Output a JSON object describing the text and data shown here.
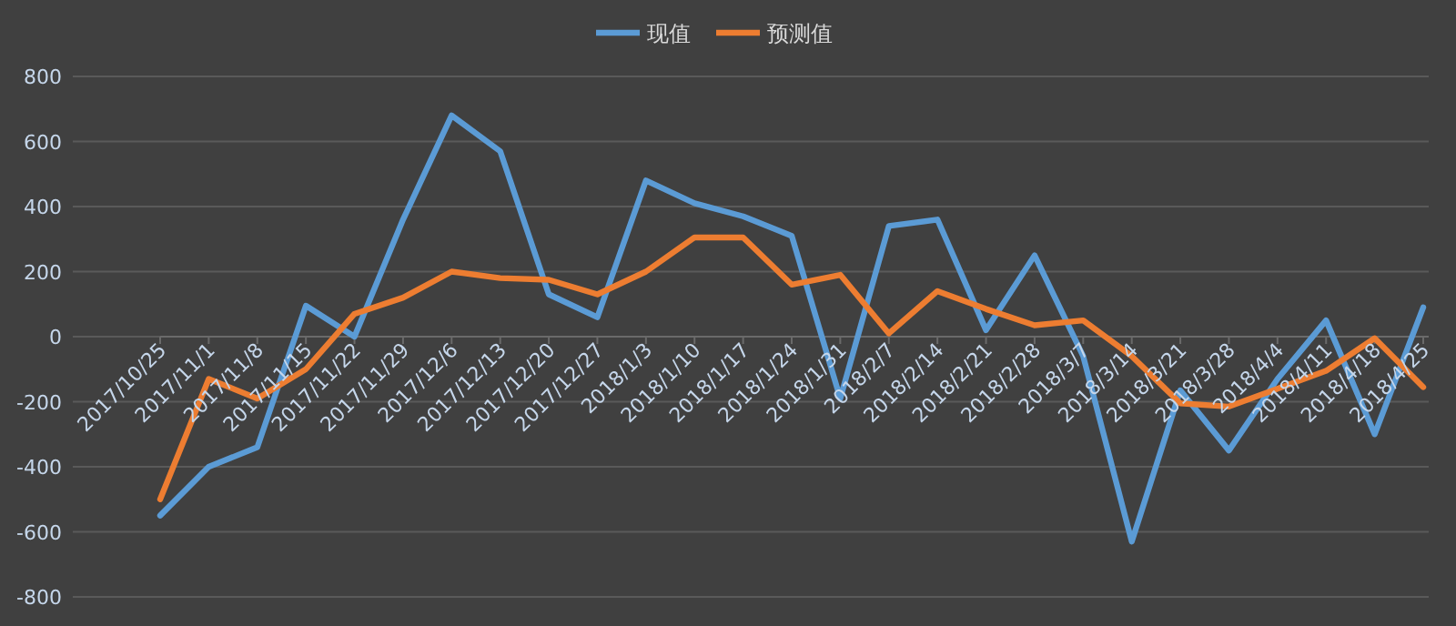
{
  "chart_data": {
    "type": "line",
    "categories": [
      "2017/10/25",
      "2017/11/1",
      "2017/11/8",
      "2017/11/15",
      "2017/11/22",
      "2017/11/29",
      "2017/12/6",
      "2017/12/13",
      "2017/12/20",
      "2017/12/27",
      "2018/1/3",
      "2018/1/10",
      "2018/1/17",
      "2018/1/24",
      "2018/1/31",
      "2018/2/7",
      "2018/2/14",
      "2018/2/21",
      "2018/2/28",
      "2018/3/7",
      "2018/3/14",
      "2018/3/21",
      "2018/3/28",
      "2018/4/4",
      "2018/4/11",
      "2018/4/18",
      "2018/4/25"
    ],
    "series": [
      {
        "name": "现值",
        "color": "#5b9bd5",
        "values": [
          -550,
          -400,
          -340,
          95,
          0,
          360,
          680,
          570,
          130,
          60,
          480,
          410,
          370,
          310,
          -190,
          340,
          360,
          20,
          250,
          -60,
          -630,
          -165,
          -350,
          -130,
          50,
          -300,
          90
        ]
      },
      {
        "name": "预测值",
        "color": "#ed7d31",
        "values": [
          -500,
          -130,
          -190,
          -100,
          70,
          120,
          200,
          180,
          175,
          130,
          200,
          305,
          305,
          160,
          190,
          10,
          140,
          85,
          35,
          50,
          -60,
          -205,
          -215,
          -160,
          -105,
          -5,
          -155
        ]
      }
    ],
    "ylim": [
      -800,
      800
    ],
    "yticks": [
      -800,
      -600,
      -400,
      -200,
      0,
      200,
      400,
      600,
      800
    ],
    "grid": "y",
    "legend": "top",
    "marker": "none",
    "line_style": "solid"
  }
}
